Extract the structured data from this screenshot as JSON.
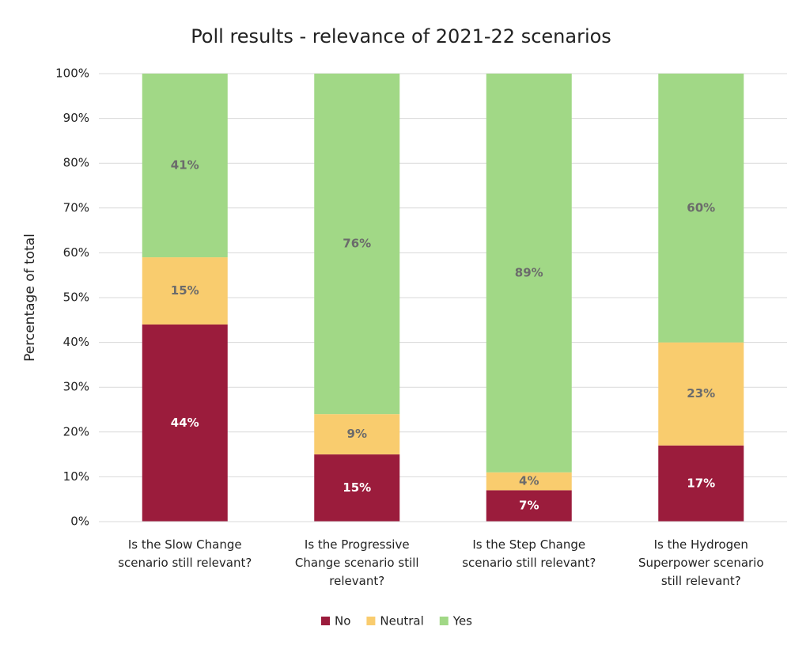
{
  "chart_data": {
    "type": "stacked_bar",
    "title": "Poll results - relevance of 2021-22 scenarios",
    "y_label": "Percentage of total",
    "categories": [
      "Is the Slow Change scenario still relevant?",
      "Is the Progressive Change scenario still relevant?",
      "Is the Step Change scenario still relevant?",
      "Is the Hydrogen Superpower scenario still relevant?"
    ],
    "series": [
      {
        "name": "No",
        "color": "#9b1c3c",
        "values": [
          44,
          15,
          7,
          17
        ],
        "value_labels": [
          "44%",
          "15%",
          "7%",
          "17%"
        ]
      },
      {
        "name": "Neutral",
        "color": "#f9cc6e",
        "values": [
          15,
          9,
          4,
          23
        ],
        "value_labels": [
          "15%",
          "9%",
          "4%",
          "23%"
        ]
      },
      {
        "name": "Yes",
        "color": "#a1d886",
        "values": [
          41,
          76,
          89,
          60
        ],
        "value_labels": [
          "41%",
          "76%",
          "89%",
          "60%"
        ]
      }
    ],
    "ylim": [
      0,
      100
    ],
    "yticks": [
      {
        "value": 0,
        "label": "0%"
      },
      {
        "value": 10,
        "label": "10%"
      },
      {
        "value": 20,
        "label": "20%"
      },
      {
        "value": 30,
        "label": "30%"
      },
      {
        "value": 40,
        "label": "40%"
      },
      {
        "value": 50,
        "label": "50%"
      },
      {
        "value": 60,
        "label": "60%"
      },
      {
        "value": 70,
        "label": "70%"
      },
      {
        "value": 80,
        "label": "80%"
      },
      {
        "value": 90,
        "label": "90%"
      },
      {
        "value": 100,
        "label": "100%"
      }
    ],
    "grid": true,
    "legend": "bottom"
  }
}
